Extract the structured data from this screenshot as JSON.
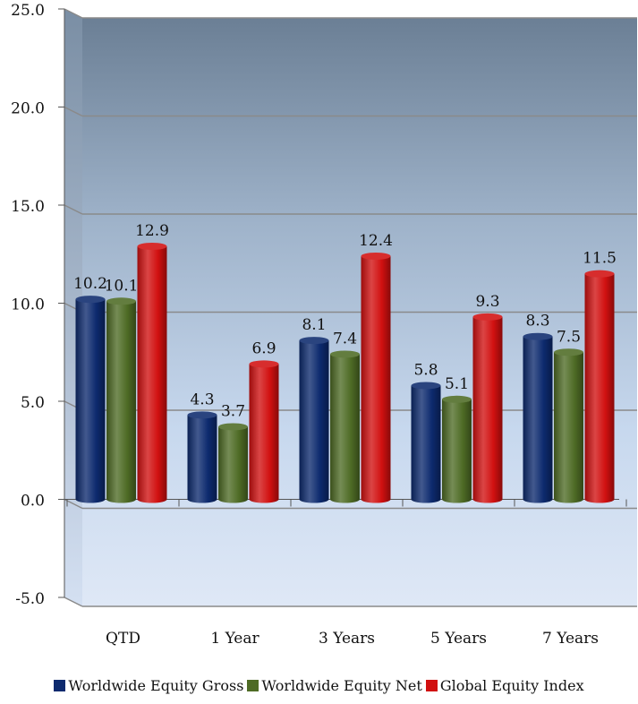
{
  "chart_data": {
    "type": "bar",
    "categories": [
      "QTD",
      "1 Year",
      "3 Years",
      "5 Years",
      "7 Years"
    ],
    "series": [
      {
        "name": "Worldwide Equity Gross",
        "color": "#0d2a6e",
        "values": [
          10.2,
          4.3,
          8.1,
          5.8,
          8.3
        ]
      },
      {
        "name": "Worldwide Equity Net",
        "color": "#4e6b25",
        "values": [
          10.1,
          3.7,
          7.4,
          5.1,
          7.5
        ]
      },
      {
        "name": "Global Equity Index",
        "color": "#d11010",
        "values": [
          12.9,
          6.9,
          12.4,
          9.3,
          11.5
        ]
      }
    ],
    "data_labels": [
      [
        "10.2",
        "4.3",
        "8.1",
        "5.8",
        "8.3"
      ],
      [
        "10.1",
        "3.7",
        "7.4",
        "5.1",
        "7.5"
      ],
      [
        "12.9",
        "6.9",
        "12.4",
        "9.3",
        "11.5"
      ]
    ],
    "yticks": [
      "25.0",
      "20.0",
      "15.0",
      "10.0",
      "5.0",
      "0.0",
      "-5.0"
    ],
    "ylim": [
      -5,
      25
    ],
    "grid": true,
    "legend_position": "bottom"
  }
}
